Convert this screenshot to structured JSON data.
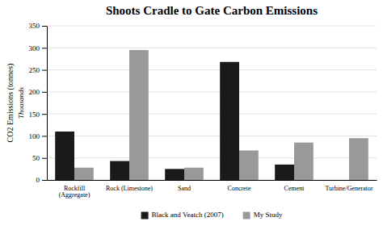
{
  "chart_data": {
    "type": "bar",
    "title": "Shoots Cradle to Gate Carbon Emissions",
    "categories": [
      "Rockfill\n(Aggregate)",
      "Rock (Limestone)",
      "Sand",
      "Concrete",
      "Cement",
      "Turbine/Generator"
    ],
    "series": [
      {
        "name": "Black and Veatch (2007)",
        "color": "#1a1a1a",
        "values": [
          110,
          43,
          25,
          268,
          35,
          0
        ]
      },
      {
        "name": "My Study",
        "color": "#999999",
        "values": [
          28,
          295,
          28,
          67,
          85,
          95
        ]
      }
    ],
    "ylabel": "CO2 Emissions (tonnes)",
    "annotations": [
      "Thousands"
    ],
    "ylim": [
      0,
      350
    ],
    "yticks": [
      0,
      50,
      100,
      150,
      200,
      250,
      300,
      350
    ],
    "grid": true,
    "legend": "bottom"
  }
}
